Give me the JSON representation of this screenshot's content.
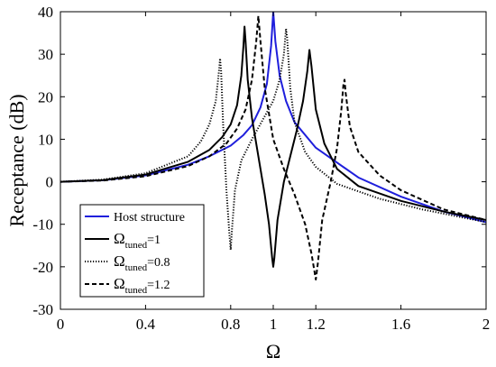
{
  "chart_data": {
    "type": "line",
    "xlabel": "Ω",
    "ylabel": "Receptance (dB)",
    "xlim": [
      0,
      2
    ],
    "ylim": [
      -30,
      40
    ],
    "xticks": [
      0,
      0.4,
      0.8,
      1,
      1.2,
      1.6,
      2
    ],
    "xtick_labels": [
      "0",
      "0.4",
      "0.8",
      "1",
      "1.2",
      "1.6",
      "2"
    ],
    "yticks": [
      -30,
      -20,
      -10,
      0,
      10,
      20,
      30,
      40
    ],
    "ytick_labels": [
      "-30",
      "-20",
      "-10",
      "0",
      "10",
      "20",
      "30",
      "40"
    ],
    "grid": false,
    "legend_position": "bottom-left",
    "series": [
      {
        "name": "Host structure",
        "label_main": "Host structure",
        "label_sub": "",
        "label_tail": "",
        "color": "#1f1fdc",
        "dash": "solid",
        "points": [
          [
            0,
            0
          ],
          [
            0.2,
            0.35
          ],
          [
            0.4,
            1.5
          ],
          [
            0.6,
            4
          ],
          [
            0.7,
            6
          ],
          [
            0.8,
            8.5
          ],
          [
            0.86,
            11
          ],
          [
            0.9,
            13.3
          ],
          [
            0.94,
            17.5
          ],
          [
            0.97,
            23
          ],
          [
            0.99,
            32
          ],
          [
            1.0,
            40
          ],
          [
            1.01,
            33
          ],
          [
            1.03,
            25
          ],
          [
            1.06,
            19
          ],
          [
            1.1,
            14
          ],
          [
            1.2,
            8
          ],
          [
            1.4,
            1
          ],
          [
            1.6,
            -3.5
          ],
          [
            1.8,
            -7
          ],
          [
            2.0,
            -9.5
          ]
        ]
      },
      {
        "name": "Ωtuned=1",
        "label_main": "Ω",
        "label_sub": "tuned",
        "label_tail": "=1",
        "color": "#000000",
        "dash": "solid",
        "points": [
          [
            0,
            0
          ],
          [
            0.2,
            0.4
          ],
          [
            0.4,
            1.7
          ],
          [
            0.6,
            4.7
          ],
          [
            0.7,
            7.5
          ],
          [
            0.76,
            10.5
          ],
          [
            0.8,
            13.5
          ],
          [
            0.83,
            18
          ],
          [
            0.85,
            25
          ],
          [
            0.86,
            32
          ],
          [
            0.865,
            36.5
          ],
          [
            0.87,
            33
          ],
          [
            0.88,
            24
          ],
          [
            0.9,
            15
          ],
          [
            0.93,
            6
          ],
          [
            0.96,
            -3
          ],
          [
            0.98,
            -10
          ],
          [
            0.995,
            -18
          ],
          [
            1.0,
            -20
          ],
          [
            1.005,
            -18
          ],
          [
            1.02,
            -9
          ],
          [
            1.05,
            0
          ],
          [
            1.08,
            6
          ],
          [
            1.11,
            12
          ],
          [
            1.14,
            19
          ],
          [
            1.16,
            26
          ],
          [
            1.17,
            31
          ],
          [
            1.18,
            27
          ],
          [
            1.2,
            17
          ],
          [
            1.24,
            9
          ],
          [
            1.3,
            3
          ],
          [
            1.4,
            -1
          ],
          [
            1.6,
            -4.5
          ],
          [
            1.8,
            -7
          ],
          [
            2.0,
            -9
          ]
        ]
      },
      {
        "name": "Ωtuned=0.8",
        "label_main": "Ω",
        "label_sub": "tuned",
        "label_tail": "=0.8",
        "color": "#000000",
        "dash": "dotted",
        "points": [
          [
            0,
            0
          ],
          [
            0.2,
            0.5
          ],
          [
            0.4,
            2
          ],
          [
            0.6,
            6
          ],
          [
            0.66,
            9.5
          ],
          [
            0.7,
            13.5
          ],
          [
            0.73,
            19
          ],
          [
            0.745,
            26
          ],
          [
            0.75,
            29
          ],
          [
            0.755,
            26
          ],
          [
            0.765,
            13
          ],
          [
            0.78,
            -2
          ],
          [
            0.795,
            -13
          ],
          [
            0.8,
            -16
          ],
          [
            0.805,
            -12
          ],
          [
            0.82,
            -2
          ],
          [
            0.85,
            5
          ],
          [
            0.9,
            10
          ],
          [
            0.95,
            14.5
          ],
          [
            1.0,
            19
          ],
          [
            1.03,
            24
          ],
          [
            1.05,
            30
          ],
          [
            1.06,
            36
          ],
          [
            1.065,
            34
          ],
          [
            1.08,
            22
          ],
          [
            1.1,
            14
          ],
          [
            1.15,
            7
          ],
          [
            1.2,
            3.5
          ],
          [
            1.3,
            -0.5
          ],
          [
            1.5,
            -4
          ],
          [
            1.7,
            -6.5
          ],
          [
            2.0,
            -9.5
          ]
        ]
      },
      {
        "name": "Ωtuned=1.2",
        "label_main": "Ω",
        "label_sub": "tuned",
        "label_tail": "=1.2",
        "color": "#000000",
        "dash": "dashed",
        "points": [
          [
            0,
            0
          ],
          [
            0.2,
            0.3
          ],
          [
            0.4,
            1.3
          ],
          [
            0.6,
            3.7
          ],
          [
            0.7,
            6
          ],
          [
            0.78,
            9
          ],
          [
            0.83,
            12.5
          ],
          [
            0.87,
            17
          ],
          [
            0.9,
            24
          ],
          [
            0.92,
            33
          ],
          [
            0.93,
            39
          ],
          [
            0.94,
            33
          ],
          [
            0.96,
            22
          ],
          [
            1.0,
            10
          ],
          [
            1.05,
            3
          ],
          [
            1.1,
            -3
          ],
          [
            1.15,
            -10
          ],
          [
            1.18,
            -17
          ],
          [
            1.2,
            -23
          ],
          [
            1.21,
            -19
          ],
          [
            1.23,
            -9
          ],
          [
            1.27,
            0
          ],
          [
            1.3,
            8
          ],
          [
            1.32,
            17
          ],
          [
            1.33,
            23
          ],
          [
            1.335,
            24
          ],
          [
            1.34,
            21
          ],
          [
            1.36,
            13
          ],
          [
            1.4,
            7
          ],
          [
            1.5,
            1.5
          ],
          [
            1.6,
            -2
          ],
          [
            1.8,
            -6.5
          ],
          [
            2.0,
            -9
          ]
        ]
      }
    ]
  }
}
